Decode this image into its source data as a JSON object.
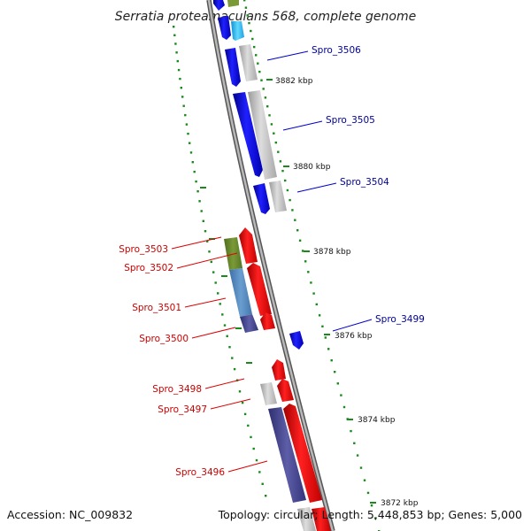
{
  "title": "Serratia proteamaculans 568, complete genome",
  "footer": {
    "accession": "Accession: NC_009832",
    "summary": "Topology: circular; Length: 5,448,853 bp; Genes: 5,000"
  },
  "colors": {
    "backbone": "#888888",
    "tick": "#1a8a1a",
    "forward_label": "#000099",
    "reverse_label": "#cc0000",
    "label_line_forward": "#0000cc",
    "label_line_reverse": "#dd0000"
  },
  "ticks": [
    {
      "label": "3882 kbp"
    },
    {
      "label": "3880 kbp"
    },
    {
      "label": "3878 kbp"
    },
    {
      "label": "3876 kbp"
    },
    {
      "label": "3874 kbp"
    },
    {
      "label": "3872 kbp"
    }
  ],
  "labels": [
    {
      "text": "Spro_3506",
      "strand": "forward"
    },
    {
      "text": "Spro_3505",
      "strand": "forward"
    },
    {
      "text": "Spro_3504",
      "strand": "forward"
    },
    {
      "text": "Spro_3503",
      "strand": "reverse"
    },
    {
      "text": "Spro_3502",
      "strand": "reverse"
    },
    {
      "text": "Spro_3501",
      "strand": "reverse"
    },
    {
      "text": "Spro_3500",
      "strand": "reverse"
    },
    {
      "text": "Spro_3499",
      "strand": "forward"
    },
    {
      "text": "Spro_3498",
      "strand": "reverse"
    },
    {
      "text": "Spro_3497",
      "strand": "reverse"
    },
    {
      "text": "Spro_3496",
      "strand": "reverse"
    }
  ]
}
